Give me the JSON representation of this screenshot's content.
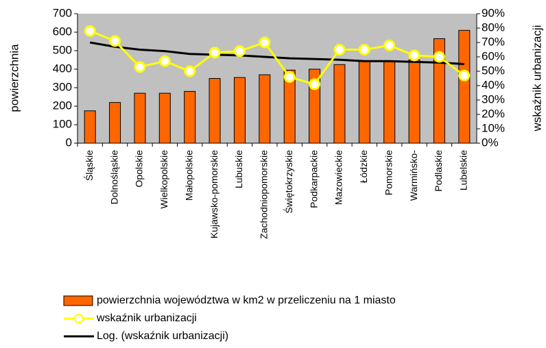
{
  "chart_data": {
    "type": "bar-line",
    "y_label": "powierzchnia",
    "y2_label": "wskaźnik urbanizacji",
    "categories": [
      "Śląskie",
      "Dolnośląskie",
      "Opolskie",
      "Wielkopolskie",
      "Małopolskie",
      "Kujawsko-pomorskie",
      "Lubuskie",
      "Zachodniopomorskie",
      "Świętokrzyskie",
      "Podkarpackie",
      "Mazowieckie",
      "Łódzkie",
      "Pomorskie",
      "Warmińsko-",
      "Podlaskie",
      "Lubelskie"
    ],
    "series": [
      {
        "name": "powierzchnia województwa w km2 w przeliczeniu na 1 miasto",
        "type": "bar",
        "color": "#ff6600",
        "values": [
          175,
          220,
          270,
          270,
          280,
          350,
          355,
          370,
          395,
          400,
          425,
          445,
          440,
          450,
          565,
          610
        ]
      },
      {
        "name": "wskaźnik urbanizacji",
        "type": "line",
        "axis": "y2",
        "color": "#ffff00",
        "values": [
          78,
          71,
          53,
          57,
          50,
          63,
          64,
          70,
          46,
          41,
          65,
          65,
          68,
          61,
          60,
          47
        ]
      },
      {
        "name": "Log. (wskaźnik urbanizacji)",
        "type": "trend",
        "axis": "y2",
        "color": "#000000",
        "values": [
          70,
          67,
          65,
          64,
          62,
          61.5,
          61,
          60,
          59,
          58.5,
          58,
          57,
          57,
          56.5,
          56,
          55
        ]
      }
    ],
    "ylim": [
      0,
      700
    ],
    "yticks": [
      0,
      100,
      200,
      300,
      400,
      500,
      600,
      700
    ],
    "y2lim": [
      0,
      90
    ],
    "y2ticks": [
      {
        "value": 0,
        "label": "0%"
      },
      {
        "value": 10,
        "label": "10%"
      },
      {
        "value": 20,
        "label": "20%"
      },
      {
        "value": 30,
        "label": "30%"
      },
      {
        "value": 40,
        "label": "40%"
      },
      {
        "value": 50,
        "label": "50%"
      },
      {
        "value": 60,
        "label": "60%"
      },
      {
        "value": 70,
        "label": "70%"
      },
      {
        "value": 80,
        "label": "80%"
      },
      {
        "value": 90,
        "label": "90%"
      }
    ],
    "plot_background": "#c0c0c0"
  }
}
